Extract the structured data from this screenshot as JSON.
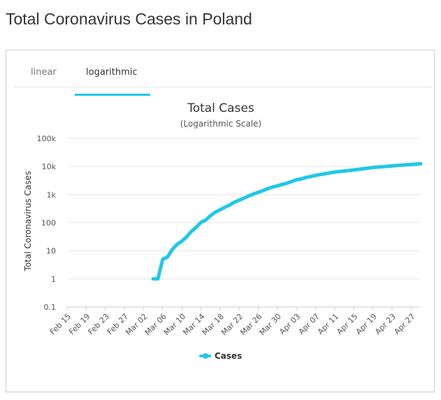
{
  "page": {
    "title": "Total Coronavirus Cases in Poland"
  },
  "tabs": [
    {
      "label": "linear",
      "active": false
    },
    {
      "label": "logarithmic",
      "active": true
    }
  ],
  "colors": {
    "series": "#21c7e8",
    "accent_tab": "#21c7e8",
    "grid": "#e6e6e6"
  },
  "chart_data": {
    "type": "line",
    "title": "Total Cases",
    "subtitle": "(Logarithmic Scale)",
    "ylabel": "Total Coronavirus Cases",
    "xlabel": "",
    "y_scale": "log",
    "ylim": [
      0.1,
      100000
    ],
    "y_ticks": [
      "0.1",
      "1",
      "10",
      "100",
      "1k",
      "10k",
      "100k"
    ],
    "x_range": [
      "2020-02-15",
      "2020-04-29"
    ],
    "x_ticks": [
      "Feb 15",
      "Feb 19",
      "Feb 23",
      "Feb 27",
      "Mar 02",
      "Mar 06",
      "Mar 10",
      "Mar 14",
      "Mar 18",
      "Mar 22",
      "Mar 26",
      "Mar 30",
      "Apr 03",
      "Apr 07",
      "Apr 11",
      "Apr 15",
      "Apr 19",
      "Apr 23",
      "Apr 27"
    ],
    "legend": "bottom-center",
    "grid": true,
    "series": [
      {
        "name": "Cases",
        "x": [
          "2020-03-04",
          "2020-03-05",
          "2020-03-06",
          "2020-03-07",
          "2020-03-08",
          "2020-03-09",
          "2020-03-10",
          "2020-03-11",
          "2020-03-12",
          "2020-03-13",
          "2020-03-14",
          "2020-03-15",
          "2020-03-16",
          "2020-03-17",
          "2020-03-18",
          "2020-03-19",
          "2020-03-20",
          "2020-03-21",
          "2020-03-22",
          "2020-03-23",
          "2020-03-24",
          "2020-03-25",
          "2020-03-26",
          "2020-03-27",
          "2020-03-28",
          "2020-03-29",
          "2020-03-30",
          "2020-03-31",
          "2020-04-01",
          "2020-04-02",
          "2020-04-03",
          "2020-04-04",
          "2020-04-05",
          "2020-04-06",
          "2020-04-07",
          "2020-04-08",
          "2020-04-09",
          "2020-04-10",
          "2020-04-11",
          "2020-04-12",
          "2020-04-13",
          "2020-04-14",
          "2020-04-15",
          "2020-04-16",
          "2020-04-17",
          "2020-04-18",
          "2020-04-19",
          "2020-04-20",
          "2020-04-21",
          "2020-04-22",
          "2020-04-23",
          "2020-04-24",
          "2020-04-25",
          "2020-04-26",
          "2020-04-27",
          "2020-04-28",
          "2020-04-29"
        ],
        "values": [
          1,
          1,
          5,
          6,
          11,
          17,
          22,
          31,
          49,
          68,
          103,
          125,
          177,
          238,
          287,
          355,
          425,
          536,
          634,
          749,
          901,
          1051,
          1221,
          1389,
          1638,
          1862,
          2055,
          2311,
          2554,
          2946,
          3383,
          3627,
          4102,
          4413,
          4848,
          5205,
          5575,
          5955,
          6356,
          6674,
          6934,
          7202,
          7582,
          7918,
          8379,
          8742,
          9287,
          9593,
          9856,
          10169,
          10511,
          10892,
          11273,
          11617,
          11902,
          12218,
          12640
        ]
      }
    ]
  }
}
